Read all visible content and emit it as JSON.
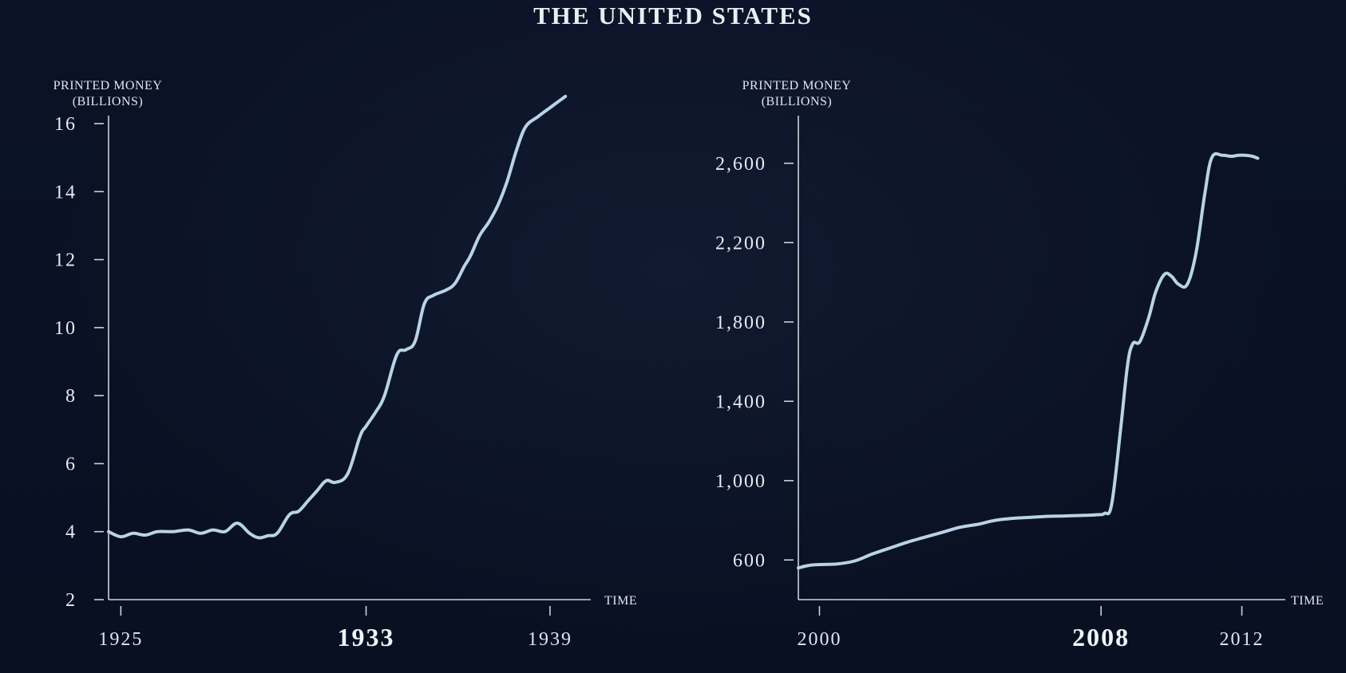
{
  "title": "THE UNITED STATES",
  "chart_data": [
    {
      "type": "line",
      "ylabel": [
        "PRINTED MONEY",
        "(BILLIONS)"
      ],
      "xlabel": "TIME",
      "ylim": [
        2,
        16
      ],
      "xlim": [
        1924.6,
        1939.6
      ],
      "yticks": [
        {
          "value": 2,
          "label": "2"
        },
        {
          "value": 4,
          "label": "4"
        },
        {
          "value": 6,
          "label": "6"
        },
        {
          "value": 8,
          "label": "8"
        },
        {
          "value": 10,
          "label": "10"
        },
        {
          "value": 12,
          "label": "12"
        },
        {
          "value": 14,
          "label": "14"
        },
        {
          "value": 16,
          "label": "16"
        }
      ],
      "xticks": [
        {
          "value": 1925,
          "label": "1925",
          "bold": false
        },
        {
          "value": 1933,
          "label": "1933",
          "bold": true
        },
        {
          "value": 1939,
          "label": "1939",
          "bold": false
        }
      ],
      "series": [
        {
          "color": "#b9d3e6",
          "x": [
            1924.6,
            1925.0,
            1925.4,
            1925.8,
            1926.2,
            1926.7,
            1927.2,
            1927.6,
            1928.0,
            1928.4,
            1928.8,
            1929.2,
            1929.5,
            1929.8,
            1930.1,
            1930.5,
            1930.8,
            1931.1,
            1931.4,
            1931.7,
            1932.0,
            1932.4,
            1932.8,
            1933.0,
            1933.3,
            1933.6,
            1934.0,
            1934.3,
            1934.6,
            1934.9,
            1935.2,
            1935.6,
            1935.9,
            1936.2,
            1936.4,
            1936.7,
            1937.0,
            1937.3,
            1937.6,
            1937.9,
            1938.2,
            1938.6,
            1938.9,
            1939.2,
            1939.5
          ],
          "y": [
            4.0,
            3.85,
            3.95,
            3.9,
            4.0,
            4.0,
            4.05,
            3.95,
            4.05,
            4.0,
            4.25,
            3.95,
            3.82,
            3.88,
            3.95,
            4.5,
            4.6,
            4.9,
            5.2,
            5.5,
            5.45,
            5.7,
            6.8,
            7.1,
            7.5,
            8.0,
            9.2,
            9.35,
            9.6,
            10.7,
            10.95,
            11.1,
            11.3,
            11.8,
            12.1,
            12.7,
            13.1,
            13.6,
            14.3,
            15.2,
            15.9,
            16.2,
            16.4,
            16.6,
            16.8
          ]
        }
      ]
    },
    {
      "type": "line",
      "ylabel": [
        "PRINTED MONEY",
        "(BILLIONS)"
      ],
      "xlabel": "TIME",
      "ylim": [
        400,
        2800
      ],
      "xlim": [
        1999.4,
        2012.6
      ],
      "yticks": [
        {
          "value": 600,
          "label": "600"
        },
        {
          "value": 1000,
          "label": "1,000"
        },
        {
          "value": 1400,
          "label": "1,400"
        },
        {
          "value": 1800,
          "label": "1,800"
        },
        {
          "value": 2200,
          "label": "2,200"
        },
        {
          "value": 2600,
          "label": "2,600"
        }
      ],
      "xticks": [
        {
          "value": 2000,
          "label": "2000",
          "bold": false
        },
        {
          "value": 2008,
          "label": "2008",
          "bold": true
        },
        {
          "value": 2012,
          "label": "2012",
          "bold": false
        }
      ],
      "series": [
        {
          "color": "#b9d3e6",
          "x": [
            1999.4,
            1999.8,
            2000.5,
            2001.0,
            2001.5,
            2002.0,
            2002.5,
            2003.0,
            2003.5,
            2004.0,
            2004.5,
            2005.0,
            2005.5,
            2006.0,
            2006.5,
            2007.0,
            2007.5,
            2007.9,
            2008.1,
            2008.3,
            2008.55,
            2008.75,
            2008.9,
            2009.1,
            2009.35,
            2009.55,
            2009.8,
            2010.0,
            2010.2,
            2010.45,
            2010.7,
            2010.95,
            2011.15,
            2011.45,
            2011.7,
            2011.9,
            2012.1,
            2012.3,
            2012.45
          ],
          "y": [
            560,
            575,
            580,
            595,
            630,
            660,
            690,
            715,
            740,
            765,
            780,
            800,
            810,
            815,
            820,
            822,
            825,
            828,
            835,
            880,
            1250,
            1580,
            1690,
            1700,
            1820,
            1950,
            2040,
            2030,
            1990,
            1990,
            2150,
            2450,
            2630,
            2640,
            2635,
            2640,
            2640,
            2635,
            2625
          ]
        }
      ]
    }
  ]
}
